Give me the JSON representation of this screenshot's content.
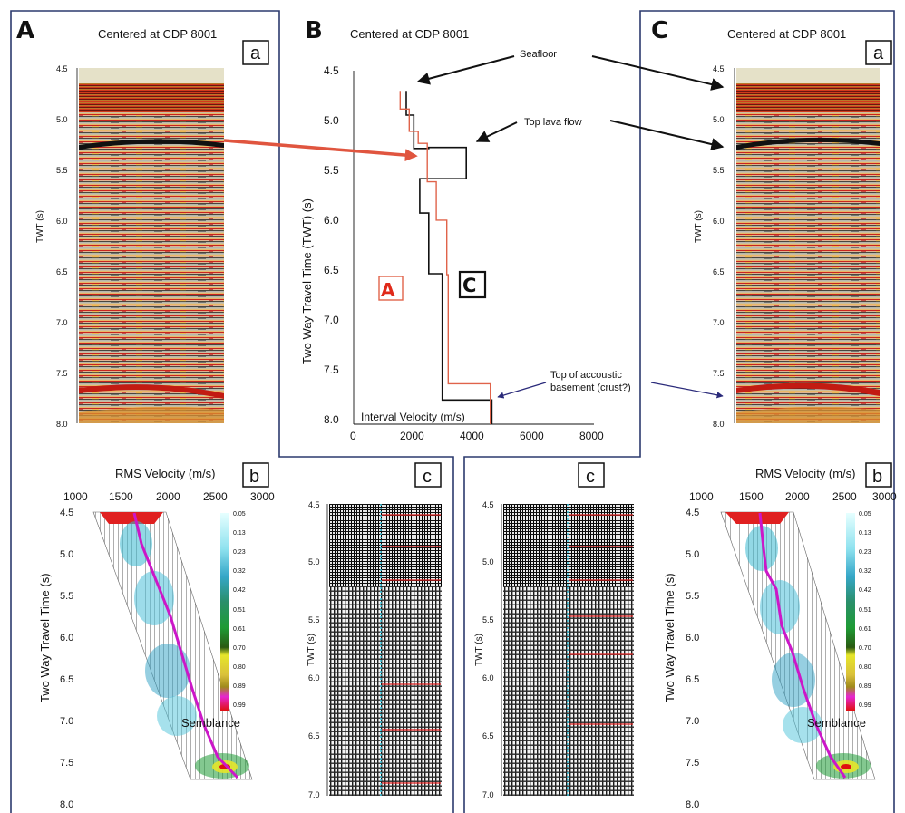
{
  "panels": {
    "A_letter": "A",
    "B_letter": "B",
    "C_letter": "C",
    "a_label": "a",
    "b_label": "b",
    "c_label": "c",
    "title_A": "Centered at CDP 8001",
    "title_B": "Centered  at CDP 8001",
    "title_C": "Centered at CDP 8001"
  },
  "seismic_axis": {
    "ylabel": "TWT (s)",
    "ticks": [
      "4.5",
      "5.0",
      "5.5",
      "6.0",
      "6.5",
      "7.0",
      "7.5",
      "8.0"
    ]
  },
  "velocity_plot": {
    "ylabel": "Two Way Travel Time (TWT) (s)",
    "xlabel": "Interval  Velocity (m/s)",
    "yticks": [
      "4.5",
      "5.0",
      "5.5",
      "6.0",
      "6.5",
      "7.0",
      "7.5",
      "8.0"
    ],
    "xticks": [
      "0",
      "2000",
      "4000",
      "6000",
      "8000"
    ],
    "label_A": "A",
    "label_C": "C",
    "annotations": {
      "seafloor": "Seafloor",
      "top_lava": "Top lava flow",
      "basement_line1": "Top of accoustic",
      "basement_line2": "basement (crust?)"
    }
  },
  "chart_data": {
    "type": "line",
    "xlabel": "Interval  Velocity (m/s)",
    "ylabel": "Two Way Travel Time (TWT) (s)",
    "xlim": [
      0,
      8000
    ],
    "ylim": [
      8.0,
      4.5
    ],
    "series": [
      {
        "name": "C",
        "color": "#111111",
        "x": [
          1750,
          1750,
          2000,
          2000,
          2500,
          2500,
          3750,
          3750,
          2200,
          2200,
          2500,
          2500,
          2950,
          2950,
          3050,
          3050,
          4600,
          4600
        ],
        "y": [
          4.7,
          4.94,
          4.94,
          5.27,
          5.27,
          5.26,
          5.26,
          5.57,
          5.57,
          5.91,
          5.91,
          6.51,
          6.51,
          7.76,
          7.76,
          7.76,
          7.76,
          8.0
        ]
      },
      {
        "name": "A",
        "color": "#e0634a",
        "x": [
          1550,
          1550,
          1850,
          1850,
          2150,
          2150,
          2450,
          2450,
          2750,
          2750,
          3100,
          3100,
          3150,
          3150,
          4550,
          4550
        ],
        "y": [
          4.7,
          4.88,
          4.88,
          5.1,
          5.1,
          5.22,
          5.22,
          5.6,
          5.6,
          5.98,
          5.98,
          6.52,
          6.52,
          7.6,
          7.6,
          8.0
        ]
      }
    ]
  },
  "semblance": {
    "xlabel": "RMS Velocity (m/s)",
    "ylabel": "Two Way Travel Time (s)",
    "xticks": [
      "1000",
      "1500",
      "2000",
      "2500",
      "3000"
    ],
    "yticks": [
      "4.5",
      "5.0",
      "5.5",
      "6.0",
      "6.5",
      "7.0",
      "7.5",
      "8.0"
    ],
    "colorbar_ticks": [
      "0.05",
      "0.13",
      "0.23",
      "0.32",
      "0.42",
      "0.51",
      "0.61",
      "0.70",
      "0.80",
      "0.89",
      "0.99"
    ],
    "colorbar_title": "Semblance"
  },
  "gather_axis": {
    "ylabel": "TWT (s)",
    "ticks": [
      "4.5",
      "5.0",
      "5.5",
      "6.0",
      "6.5",
      "7.0"
    ]
  }
}
